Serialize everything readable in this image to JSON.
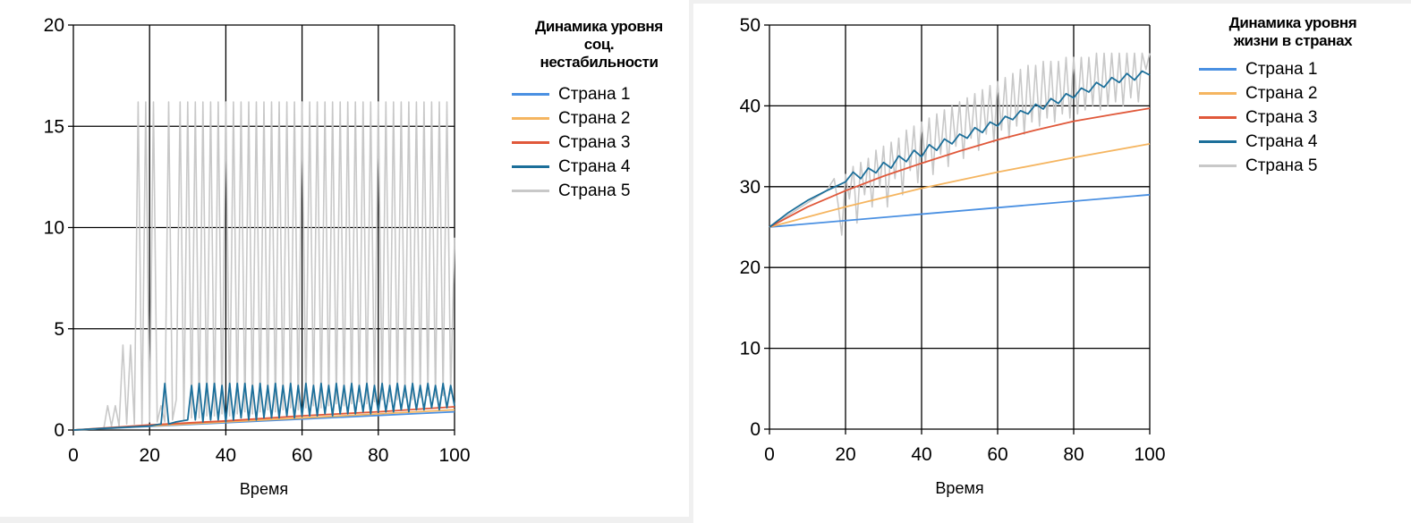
{
  "chart_data": [
    {
      "type": "line",
      "title": "Динамика уровня соц. нестабильности",
      "title_lines": [
        "Динамика уровня",
        "соц.",
        "нестабильности"
      ],
      "xlabel": "Время",
      "ylabel": "",
      "xlim": [
        0,
        100
      ],
      "ylim": [
        0,
        20
      ],
      "xticks": [
        "0",
        "20",
        "40",
        "60",
        "80",
        "100"
      ],
      "yticks": [
        "0",
        "5",
        "10",
        "15",
        "20"
      ],
      "grid": true,
      "legend_position": "right",
      "series": [
        {
          "name": "Страна 1",
          "color": "#4a90e2",
          "x": [
            0,
            100
          ],
          "y": [
            0,
            0.9
          ]
        },
        {
          "name": "Страна 2",
          "color": "#f5b560",
          "x": [
            0,
            100
          ],
          "y": [
            0,
            1.0
          ]
        },
        {
          "name": "Страна 3",
          "color": "#e0583a",
          "x": [
            0,
            20,
            40,
            60,
            80,
            100
          ],
          "y": [
            0,
            0.25,
            0.45,
            0.7,
            0.9,
            1.15
          ]
        },
        {
          "name": "Страна 4",
          "color": "#1c6f9a",
          "x": [
            0,
            10,
            20,
            23,
            24,
            25,
            27,
            30,
            31,
            32,
            33,
            34,
            35,
            36,
            37,
            38,
            39,
            40,
            41,
            42,
            43,
            44,
            45,
            46,
            47,
            48,
            49,
            50,
            51,
            52,
            53,
            54,
            55,
            56,
            57,
            58,
            59,
            60,
            61,
            62,
            63,
            64,
            65,
            66,
            67,
            68,
            69,
            70,
            71,
            72,
            73,
            74,
            75,
            76,
            77,
            78,
            79,
            80,
            81,
            82,
            83,
            84,
            85,
            86,
            87,
            88,
            89,
            90,
            91,
            92,
            93,
            94,
            95,
            96,
            97,
            98,
            99,
            100
          ],
          "y": [
            0,
            0.1,
            0.2,
            0.3,
            2.3,
            0.3,
            0.4,
            0.5,
            2.2,
            0.5,
            2.3,
            0.4,
            2.3,
            0.5,
            2.3,
            0.5,
            2.2,
            0.4,
            2.3,
            0.5,
            2.3,
            0.6,
            2.3,
            0.5,
            2.2,
            0.5,
            2.3,
            0.6,
            2.2,
            0.6,
            2.3,
            0.6,
            2.2,
            0.7,
            2.3,
            0.6,
            2.2,
            0.7,
            2.3,
            0.7,
            2.2,
            0.7,
            2.3,
            0.8,
            2.2,
            0.7,
            2.3,
            0.8,
            2.2,
            0.8,
            2.3,
            0.8,
            2.2,
            0.9,
            2.3,
            0.8,
            2.2,
            0.9,
            2.3,
            0.9,
            2.2,
            0.9,
            2.3,
            1.0,
            2.2,
            0.9,
            2.3,
            1.0,
            2.2,
            1.0,
            2.3,
            1.1,
            2.2,
            1.0,
            2.3,
            1.1,
            2.2,
            1.2
          ]
        },
        {
          "name": "Страна 5",
          "color": "#c8c8c8",
          "x": [
            0,
            8,
            9,
            10,
            11,
            12,
            13,
            14,
            15,
            16,
            17,
            18,
            19,
            20,
            21,
            22,
            23,
            24,
            25,
            26,
            27,
            28,
            29,
            30,
            31,
            32,
            33,
            34,
            35,
            36,
            37,
            38,
            39,
            40,
            41,
            42,
            43,
            44,
            45,
            46,
            47,
            48,
            49,
            50,
            51,
            52,
            53,
            54,
            55,
            56,
            57,
            58,
            59,
            60,
            61,
            62,
            63,
            64,
            65,
            66,
            67,
            68,
            69,
            70,
            71,
            72,
            73,
            74,
            75,
            76,
            77,
            78,
            79,
            80,
            81,
            82,
            83,
            84,
            85,
            86,
            87,
            88,
            89,
            90,
            91,
            92,
            93,
            94,
            95,
            96,
            97,
            98,
            99,
            100
          ],
          "y": [
            0,
            0.1,
            1.2,
            0.2,
            1.2,
            0.2,
            4.2,
            0.3,
            4.2,
            0.3,
            16.2,
            0.3,
            16.2,
            0.4,
            16.2,
            0.4,
            1.2,
            0.4,
            16.2,
            0.5,
            1.5,
            16.2,
            0.5,
            16.2,
            0.6,
            16.2,
            0.6,
            16.2,
            0.7,
            16.2,
            0.7,
            16.2,
            0.8,
            16.2,
            0.7,
            16.2,
            0.8,
            16.2,
            0.9,
            16.2,
            0.8,
            16.2,
            0.9,
            16.2,
            1.0,
            16.2,
            0.9,
            16.2,
            1.0,
            16.2,
            1.1,
            16.2,
            1.0,
            16.2,
            1.1,
            16.2,
            1.2,
            16.2,
            1.1,
            16.2,
            1.2,
            16.2,
            1.3,
            16.2,
            1.2,
            16.2,
            1.3,
            16.2,
            1.4,
            16.2,
            1.3,
            16.2,
            1.4,
            16.2,
            1.5,
            16.2,
            1.4,
            16.2,
            1.5,
            16.2,
            1.6,
            16.2,
            1.5,
            16.2,
            1.6,
            16.2,
            1.7,
            16.2,
            1.6,
            16.2,
            1.7,
            16.2,
            1.8,
            9.5
          ]
        }
      ]
    },
    {
      "type": "line",
      "title": "Динамика уровня жизни в странах",
      "title_lines": [
        "Динамика уровня",
        "жизни в странах"
      ],
      "xlabel": "Время",
      "ylabel": "",
      "xlim": [
        0,
        100
      ],
      "ylim": [
        0,
        50
      ],
      "xticks": [
        "0",
        "20",
        "40",
        "60",
        "80",
        "100"
      ],
      "yticks": [
        "0",
        "10",
        "20",
        "30",
        "40",
        "50"
      ],
      "grid": true,
      "legend_position": "right",
      "series": [
        {
          "name": "Страна 1",
          "color": "#4a90e2",
          "x": [
            0,
            100
          ],
          "y": [
            25,
            29
          ]
        },
        {
          "name": "Страна 2",
          "color": "#f5b560",
          "x": [
            0,
            20,
            40,
            60,
            80,
            100
          ],
          "y": [
            25,
            27.5,
            29.8,
            31.8,
            33.6,
            35.3
          ]
        },
        {
          "name": "Страна 3",
          "color": "#e0583a",
          "x": [
            0,
            10,
            20,
            30,
            40,
            50,
            60,
            70,
            80,
            90,
            100
          ],
          "y": [
            25,
            27.5,
            29.5,
            31.3,
            32.9,
            34.4,
            35.8,
            37.0,
            38.1,
            38.9,
            39.7
          ]
        },
        {
          "name": "Страна 4",
          "color": "#1c6f9a",
          "x": [
            0,
            5,
            10,
            15,
            20,
            22,
            24,
            26,
            28,
            30,
            32,
            34,
            36,
            38,
            40,
            42,
            44,
            46,
            48,
            50,
            52,
            54,
            56,
            58,
            60,
            62,
            64,
            66,
            68,
            70,
            72,
            74,
            76,
            78,
            80,
            82,
            84,
            86,
            88,
            90,
            92,
            94,
            96,
            98,
            100
          ],
          "y": [
            25,
            26.8,
            28.3,
            29.5,
            30.6,
            31.8,
            31.0,
            32.3,
            31.7,
            33.0,
            32.3,
            33.8,
            33.1,
            34.5,
            33.7,
            35.2,
            34.5,
            35.9,
            35.3,
            36.5,
            36.0,
            37.3,
            36.7,
            38.0,
            37.5,
            38.7,
            38.3,
            39.4,
            39.0,
            40.2,
            39.6,
            40.9,
            40.3,
            41.5,
            41.0,
            42.2,
            41.7,
            42.9,
            42.3,
            43.5,
            42.9,
            44.0,
            43.2,
            44.3,
            43.8
          ]
        },
        {
          "name": "Страна 5",
          "color": "#c8c8c8",
          "x": [
            0,
            5,
            10,
            15,
            17,
            18,
            19,
            20,
            21,
            22,
            23,
            24,
            25,
            26,
            27,
            28,
            29,
            30,
            31,
            32,
            33,
            34,
            35,
            36,
            37,
            38,
            39,
            40,
            41,
            42,
            43,
            44,
            45,
            46,
            47,
            48,
            49,
            50,
            51,
            52,
            53,
            54,
            55,
            56,
            57,
            58,
            59,
            60,
            61,
            62,
            63,
            64,
            65,
            66,
            67,
            68,
            69,
            70,
            71,
            72,
            73,
            74,
            75,
            76,
            77,
            78,
            79,
            80,
            81,
            82,
            83,
            84,
            85,
            86,
            87,
            88,
            89,
            90,
            91,
            92,
            93,
            94,
            95,
            96,
            97,
            98,
            99,
            100
          ],
          "y": [
            25,
            26.5,
            28.0,
            29.5,
            31.0,
            28.0,
            24.0,
            31.5,
            28.5,
            32.5,
            25.5,
            33.0,
            29.0,
            33.5,
            27.5,
            34.5,
            30.0,
            35.0,
            27.5,
            35.5,
            31.0,
            36.0,
            29.0,
            37.0,
            32.0,
            37.5,
            30.5,
            38.0,
            33.0,
            38.5,
            31.5,
            39.0,
            34.0,
            39.5,
            32.5,
            40.0,
            35.0,
            40.5,
            33.5,
            41.0,
            36.0,
            41.5,
            34.5,
            42.0,
            36.5,
            42.5,
            35.5,
            43.0,
            37.0,
            43.5,
            36.0,
            44.0,
            37.5,
            44.5,
            36.5,
            45.0,
            38.0,
            45.0,
            37.5,
            45.5,
            38.5,
            45.5,
            38.0,
            45.5,
            39.0,
            46.0,
            38.5,
            46.0,
            39.0,
            46.0,
            39.5,
            46.0,
            40.0,
            46.5,
            39.5,
            46.5,
            40.0,
            46.5,
            40.5,
            46.5,
            40.0,
            46.5,
            41.0,
            46.5,
            40.5,
            46.5,
            44.5,
            46.5
          ]
        }
      ]
    }
  ]
}
